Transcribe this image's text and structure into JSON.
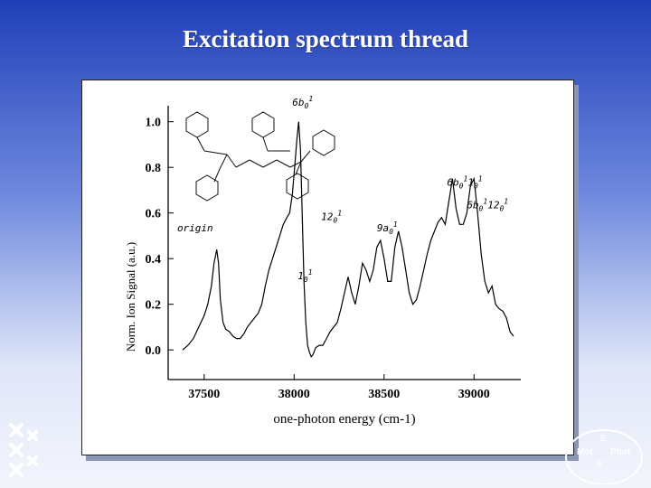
{
  "slide": {
    "title": "Excitation spectrum thread"
  },
  "colors": {
    "accent": "#1f3fb8",
    "trace": "#000000",
    "axis": "#000000",
    "panel": "#ffffff"
  },
  "logos": {
    "left": "university-crest-icon",
    "right": {
      "icon": "molphoes-circle-logo",
      "text": [
        "E",
        "Mol",
        "Phot",
        "S"
      ]
    }
  },
  "chart_data": {
    "type": "line",
    "title": "",
    "xlabel": "one-photon energy (cm-1)",
    "ylabel": "Norm. Ion Signal (a.u.)",
    "xlim": [
      37300,
      39260
    ],
    "ylim": [
      -0.13,
      1.07
    ],
    "x_ticks": [
      37500,
      38000,
      38500,
      39000
    ],
    "x_tick_labels": [
      "37500",
      "38000",
      "38500",
      "39000"
    ],
    "y_ticks": [
      0.0,
      0.2,
      0.4,
      0.6,
      0.8,
      1.0
    ],
    "y_tick_labels": [
      "0.0",
      "0.2",
      "0.4",
      "0.6",
      "0.8",
      "1.0"
    ],
    "grid": false,
    "series": [
      {
        "x": [
          37380,
          37410,
          37440,
          37470,
          37500,
          37520,
          37540,
          37555,
          37570,
          37580,
          37590,
          37605,
          37620,
          37640,
          37660,
          37680,
          37700,
          37720,
          37740,
          37760,
          37780,
          37800,
          37820,
          37840,
          37860,
          37880,
          37900,
          37920,
          37940,
          37960,
          37975,
          37990,
          38005,
          38015,
          38025,
          38035,
          38045,
          38055,
          38065,
          38075,
          38085,
          38095,
          38105,
          38120,
          38140,
          38160,
          38180,
          38200,
          38220,
          38240,
          38260,
          38280,
          38300,
          38320,
          38340,
          38360,
          38380,
          38400,
          38420,
          38440,
          38460,
          38480,
          38500,
          38520,
          38540,
          38560,
          38580,
          38600,
          38620,
          38640,
          38660,
          38680,
          38700,
          38720,
          38740,
          38760,
          38780,
          38800,
          38820,
          38840,
          38860,
          38880,
          38900,
          38920,
          38940,
          38960,
          38980,
          39000,
          39020,
          39040,
          39060,
          39080,
          39100,
          39120,
          39140,
          39160,
          39180,
          39200,
          39220
        ],
        "y": [
          0.0,
          0.02,
          0.05,
          0.1,
          0.15,
          0.2,
          0.28,
          0.38,
          0.44,
          0.38,
          0.22,
          0.12,
          0.09,
          0.08,
          0.06,
          0.05,
          0.05,
          0.07,
          0.1,
          0.12,
          0.14,
          0.16,
          0.2,
          0.28,
          0.35,
          0.4,
          0.45,
          0.5,
          0.55,
          0.58,
          0.6,
          0.68,
          0.82,
          0.92,
          1.0,
          0.88,
          0.6,
          0.3,
          0.12,
          0.02,
          -0.01,
          -0.03,
          -0.02,
          0.01,
          0.02,
          0.02,
          0.05,
          0.08,
          0.1,
          0.12,
          0.18,
          0.25,
          0.32,
          0.25,
          0.2,
          0.28,
          0.38,
          0.35,
          0.3,
          0.35,
          0.45,
          0.48,
          0.4,
          0.3,
          0.3,
          0.45,
          0.52,
          0.45,
          0.35,
          0.25,
          0.2,
          0.22,
          0.28,
          0.35,
          0.42,
          0.48,
          0.52,
          0.56,
          0.58,
          0.55,
          0.65,
          0.75,
          0.62,
          0.55,
          0.55,
          0.6,
          0.72,
          0.75,
          0.6,
          0.42,
          0.3,
          0.25,
          0.28,
          0.2,
          0.18,
          0.17,
          0.14,
          0.08,
          0.06
        ]
      }
    ],
    "annotations": [
      {
        "text": "6b",
        "sub": "0",
        "sup": "1",
        "x": 37990,
        "y": 1.07
      },
      {
        "text": "6b",
        "sub": "0",
        "sup": "1",
        "text2": "1",
        "sub2": "0",
        "sup2": "1",
        "x": 38850,
        "y": 0.72
      },
      {
        "text": "6b",
        "sub": "0",
        "sup": "1",
        "text2": "12",
        "sub2": "0",
        "sup2": "1",
        "x": 38960,
        "y": 0.62
      },
      {
        "text": "12",
        "sub": "0",
        "sup": "1",
        "x": 38150,
        "y": 0.57
      },
      {
        "text": "9a",
        "sub": "0",
        "sup": "1",
        "x": 38460,
        "y": 0.52
      },
      {
        "text": "origin",
        "x": 37350,
        "y": 0.52
      },
      {
        "text": "1",
        "sub": "0",
        "sup": "1",
        "x": 38020,
        "y": 0.31
      }
    ]
  }
}
